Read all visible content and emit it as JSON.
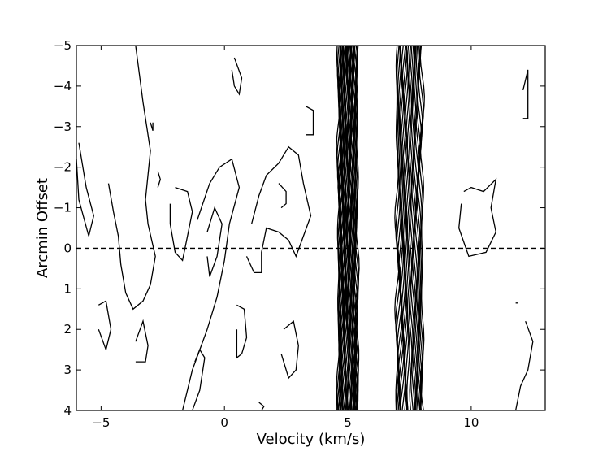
{
  "chart_data": {
    "type": "contour",
    "title": "",
    "xlabel": "Velocity (km/s)",
    "ylabel": "Arcmin Offset",
    "xlim": [
      -6,
      13
    ],
    "ylim": [
      -5,
      4
    ],
    "y_inverted": true,
    "xticks": [
      -5,
      0,
      5,
      10
    ],
    "yticks": [
      -5,
      -4,
      -3,
      -2,
      -1,
      0,
      1,
      2,
      3,
      4
    ],
    "xtick_labels": [
      "−5",
      "0",
      "5",
      "10"
    ],
    "ytick_labels": [
      "−5",
      "−4",
      "−3",
      "−2",
      "−1",
      "0",
      "1",
      "2",
      "3",
      "4"
    ],
    "reference_line": {
      "y": 0,
      "style": "dashed"
    },
    "grid": false,
    "line_color": "#000000",
    "components": [
      {
        "name": "",
        "center_v": 5.0,
        "width_v": 0.4,
        "levels": 20
      },
      {
        "name": "",
        "center_v": 7.5,
        "width_v": 0.55,
        "levels": 14
      }
    ],
    "noise_contours": [
      {
        "points": [
          [
            -5.9,
            -2.6
          ],
          [
            -5.6,
            -1.5
          ],
          [
            -5.3,
            -0.8
          ],
          [
            -5.5,
            -0.3
          ],
          [
            -5.9,
            -1.2
          ],
          [
            -6.0,
            -2.2
          ]
        ]
      },
      {
        "points": [
          [
            -4.7,
            -1.6
          ],
          [
            -4.5,
            -0.9
          ],
          [
            -4.3,
            -0.3
          ],
          [
            -4.2,
            0.4
          ],
          [
            -4.0,
            1.1
          ],
          [
            -3.7,
            1.5
          ],
          [
            -3.3,
            1.3
          ],
          [
            -3.0,
            0.9
          ],
          [
            -2.8,
            0.2
          ],
          [
            -3.1,
            -0.6
          ],
          [
            -3.2,
            -1.2
          ],
          [
            -3.0,
            -2.4
          ],
          [
            -3.3,
            -3.6
          ],
          [
            -3.6,
            -5.0
          ]
        ]
      },
      {
        "points": [
          [
            -5.1,
            1.4
          ],
          [
            -4.8,
            1.3
          ],
          [
            -4.6,
            2.0
          ],
          [
            -4.8,
            2.5
          ],
          [
            -5.1,
            2.0
          ]
        ]
      },
      {
        "points": [
          [
            -3.6,
            2.3
          ],
          [
            -3.3,
            1.8
          ],
          [
            -3.1,
            2.4
          ],
          [
            -3.2,
            2.8
          ],
          [
            -3.6,
            2.8
          ]
        ]
      },
      {
        "points": [
          [
            -3.0,
            -3.1
          ],
          [
            -2.9,
            -2.9
          ],
          [
            -2.9,
            -3.1
          ]
        ]
      },
      {
        "points": [
          [
            -2.7,
            -1.9
          ],
          [
            -2.6,
            -1.7
          ],
          [
            -2.7,
            -1.5
          ]
        ]
      },
      {
        "points": [
          [
            -2.0,
            -1.5
          ],
          [
            -1.5,
            -1.4
          ],
          [
            -1.3,
            -0.9
          ],
          [
            -1.5,
            -0.3
          ],
          [
            -1.7,
            0.3
          ],
          [
            -2.0,
            0.1
          ],
          [
            -2.2,
            -0.6
          ],
          [
            -2.2,
            -1.1
          ]
        ]
      },
      {
        "points": [
          [
            -1.1,
            -0.7
          ],
          [
            -0.6,
            -1.6
          ],
          [
            -0.2,
            -2.0
          ],
          [
            0.3,
            -2.2
          ],
          [
            0.6,
            -1.5
          ],
          [
            0.2,
            -0.6
          ],
          [
            0.0,
            0.3
          ],
          [
            -0.3,
            1.2
          ],
          [
            -0.7,
            2.0
          ],
          [
            -1.3,
            3.0
          ],
          [
            -1.7,
            4.0
          ]
        ]
      },
      {
        "points": [
          [
            -0.7,
            -0.4
          ],
          [
            -0.4,
            -1.0
          ],
          [
            -0.1,
            -0.6
          ],
          [
            -0.3,
            0.2
          ],
          [
            -0.6,
            0.7
          ],
          [
            -0.7,
            0.2
          ]
        ]
      },
      {
        "points": [
          [
            0.4,
            -4.7
          ],
          [
            0.7,
            -4.2
          ],
          [
            0.6,
            -3.8
          ],
          [
            0.4,
            -4.0
          ],
          [
            0.3,
            -4.4
          ]
        ]
      },
      {
        "points": [
          [
            0.5,
            1.4
          ],
          [
            0.8,
            1.5
          ],
          [
            0.9,
            2.2
          ],
          [
            0.7,
            2.6
          ],
          [
            0.5,
            2.7
          ],
          [
            0.5,
            2.0
          ]
        ]
      },
      {
        "points": [
          [
            1.1,
            -0.6
          ],
          [
            1.4,
            -1.3
          ],
          [
            1.7,
            -1.8
          ],
          [
            2.2,
            -2.1
          ],
          [
            2.6,
            -2.5
          ],
          [
            3.0,
            -2.3
          ],
          [
            3.2,
            -1.6
          ],
          [
            3.5,
            -0.8
          ],
          [
            3.2,
            -0.3
          ],
          [
            2.9,
            0.2
          ],
          [
            2.6,
            -0.2
          ],
          [
            2.2,
            -0.4
          ],
          [
            1.7,
            -0.5
          ],
          [
            1.5,
            0.1
          ],
          [
            1.5,
            0.6
          ],
          [
            1.2,
            0.6
          ],
          [
            0.9,
            0.2
          ]
        ]
      },
      {
        "points": [
          [
            2.2,
            -1.6
          ],
          [
            2.5,
            -1.4
          ],
          [
            2.5,
            -1.1
          ],
          [
            2.3,
            -1.0
          ]
        ]
      },
      {
        "points": [
          [
            3.3,
            -3.5
          ],
          [
            3.6,
            -3.4
          ],
          [
            3.6,
            -2.8
          ],
          [
            3.3,
            -2.8
          ]
        ]
      },
      {
        "points": [
          [
            2.4,
            2.0
          ],
          [
            2.8,
            1.8
          ],
          [
            3.0,
            2.4
          ],
          [
            2.9,
            3.0
          ],
          [
            2.6,
            3.2
          ],
          [
            2.3,
            2.6
          ]
        ]
      },
      {
        "points": [
          [
            1.4,
            3.8
          ],
          [
            1.6,
            3.9
          ],
          [
            1.5,
            4.0
          ]
        ]
      },
      {
        "points": [
          [
            -1.2,
            2.8
          ],
          [
            -1.0,
            2.5
          ],
          [
            -0.8,
            2.7
          ],
          [
            -1.0,
            3.5
          ],
          [
            -1.3,
            4.0
          ]
        ]
      },
      {
        "points": [
          [
            9.7,
            -1.4
          ],
          [
            10.0,
            -1.5
          ],
          [
            10.5,
            -1.4
          ],
          [
            11.0,
            -1.7
          ],
          [
            10.8,
            -1.0
          ],
          [
            11.0,
            -0.4
          ],
          [
            10.6,
            0.1
          ],
          [
            9.9,
            0.2
          ],
          [
            9.5,
            -0.5
          ],
          [
            9.6,
            -1.1
          ]
        ]
      },
      {
        "points": [
          [
            12.1,
            -3.9
          ],
          [
            12.3,
            -4.4
          ],
          [
            12.3,
            -3.2
          ],
          [
            12.1,
            -3.2
          ]
        ]
      },
      {
        "points": [
          [
            12.2,
            1.8
          ],
          [
            12.5,
            2.3
          ],
          [
            12.3,
            3.0
          ],
          [
            12.0,
            3.4
          ],
          [
            11.8,
            4.0
          ]
        ]
      },
      {
        "points": [
          [
            11.8,
            1.35
          ],
          [
            11.9,
            1.35
          ]
        ]
      }
    ]
  }
}
